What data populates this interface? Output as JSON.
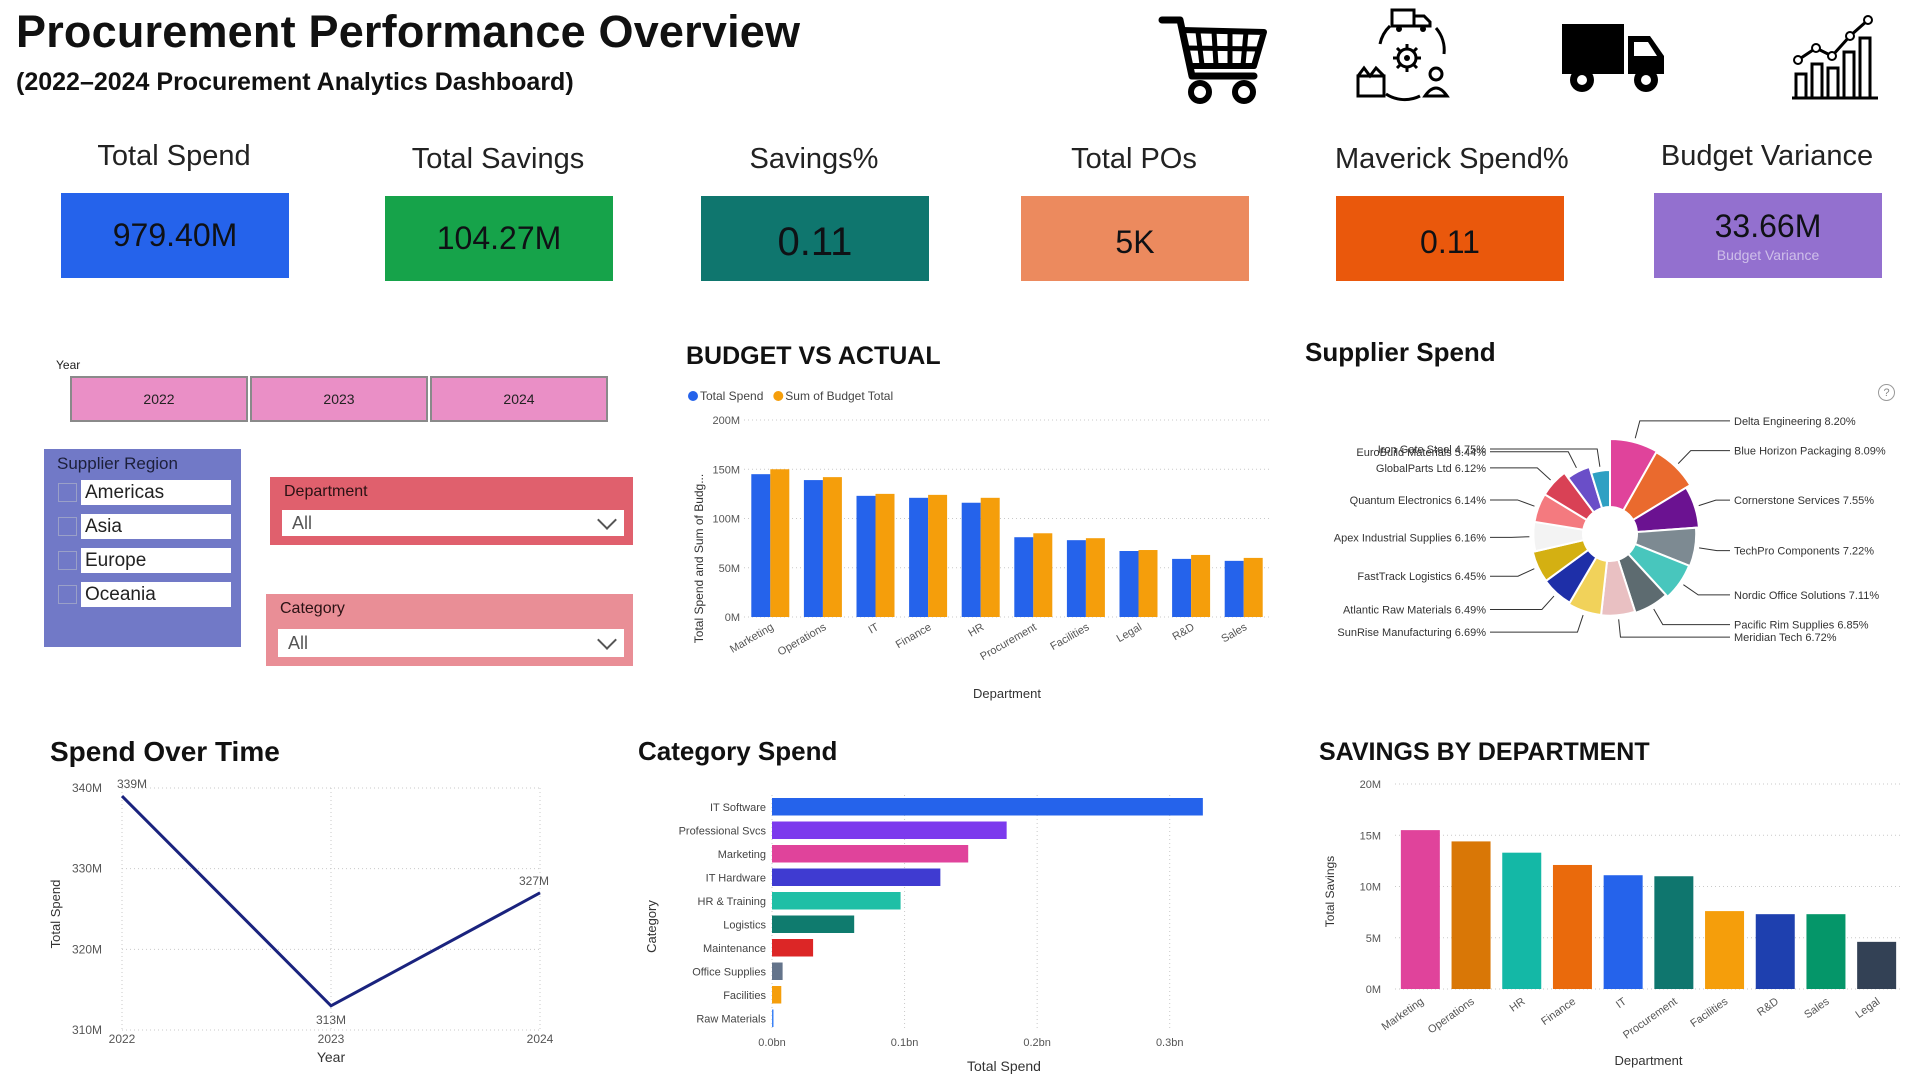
{
  "header": {
    "title": "Procurement Performance Overview",
    "subtitle": "(2022–2024 Procurement Analytics Dashboard)",
    "icons": [
      "shopping-cart-icon",
      "supply-chain-cycle-icon",
      "delivery-truck-icon",
      "growth-bar-chart-icon"
    ]
  },
  "kpis": [
    {
      "label": "Total Spend",
      "value": "979.40M",
      "sub": "",
      "color": "#2563eb"
    },
    {
      "label": "Total Savings",
      "value": "104.27M",
      "sub": "",
      "color": "#16a34a"
    },
    {
      "label": "Savings%",
      "value": "0.11",
      "sub": "",
      "color": "#0f766e"
    },
    {
      "label": "Total POs",
      "value": "5K",
      "sub": "",
      "color": "#ec8a5e"
    },
    {
      "label": "Maverick Spend%",
      "value": "0.11",
      "sub": "",
      "color": "#ea580c"
    },
    {
      "label": "Budget Variance",
      "value": "33.66M",
      "sub": "Budget Variance",
      "color": "#9370cf"
    }
  ],
  "filters": {
    "year": {
      "caption": "Year",
      "options": [
        "2022",
        "2023",
        "2024"
      ]
    },
    "region": {
      "caption": "Supplier Region",
      "options": [
        "Americas",
        "Asia",
        "Europe",
        "Oceania"
      ]
    },
    "department": {
      "caption": "Department",
      "value": "All"
    },
    "category": {
      "caption": "Category",
      "value": "All"
    }
  },
  "chart_data": [
    {
      "id": "budget-vs-actual",
      "type": "bar",
      "title": "BUDGET VS ACTUAL",
      "xlabel": "Department",
      "ylabel": "Total Spend and Sum of Budg...",
      "categories": [
        "Marketing",
        "Operations",
        "IT",
        "Finance",
        "HR",
        "Procurement",
        "Facilities",
        "Legal",
        "R&D",
        "Sales"
      ],
      "series": [
        {
          "name": "Total Spend",
          "color": "#2563eb",
          "values": [
            145,
            139,
            123,
            121,
            116,
            81,
            78,
            67,
            59,
            57
          ]
        },
        {
          "name": "Sum of Budget Total",
          "color": "#f59e0b",
          "values": [
            150,
            142,
            125,
            124,
            121,
            85,
            80,
            68,
            63,
            60
          ]
        }
      ],
      "yticks": [
        "0M",
        "50M",
        "100M",
        "150M",
        "200M"
      ],
      "ylim": [
        0,
        200
      ],
      "legend": "top-left",
      "grid": true
    },
    {
      "id": "supplier-spend",
      "type": "pie",
      "title": "Supplier Spend",
      "slices": [
        {
          "label": "Delta Engineering 8.20%",
          "value": 8.2,
          "color": "#e0439b"
        },
        {
          "label": "Blue Horizon Packaging 8.09%",
          "value": 8.09,
          "color": "#ea6a2e"
        },
        {
          "label": "Cornerstone Services 7.55%",
          "value": 7.55,
          "color": "#6b1291"
        },
        {
          "label": "TechPro Components 7.22%",
          "value": 7.22,
          "color": "#7d8a92"
        },
        {
          "label": "Nordic Office Solutions 7.11%",
          "value": 7.11,
          "color": "#48c6bd"
        },
        {
          "label": "Pacific Rim Supplies 6.85%",
          "value": 6.85,
          "color": "#5d6b70"
        },
        {
          "label": "Meridian Tech 6.72%",
          "value": 6.72,
          "color": "#e9c0c2"
        },
        {
          "label": "SunRise Manufacturing 6.69%",
          "value": 6.69,
          "color": "#f1d25a"
        },
        {
          "label": "Atlantic Raw Materials 6.49%",
          "value": 6.49,
          "color": "#1e2fa8"
        },
        {
          "label": "FastTrack Logistics 6.45%",
          "value": 6.45,
          "color": "#d4b012"
        },
        {
          "label": "Apex Industrial Supplies 6.16%",
          "value": 6.16,
          "color": "#ffffff"
        },
        {
          "label": "Quantum Electronics 6.14%",
          "value": 6.14,
          "color": "#f47a7f"
        },
        {
          "label": "GlobalParts Ltd 6.12%",
          "value": 6.12,
          "color": "#d94155"
        },
        {
          "label": "EuroBuild Materials 5.44%",
          "value": 5.44,
          "color": "#6a4ec8"
        },
        {
          "label": "Iron Gate Steel 4.75%",
          "value": 4.75,
          "color": "#2fa0c3"
        }
      ],
      "legend": "outside labels"
    },
    {
      "id": "spend-over-time",
      "type": "line",
      "title": "Spend Over Time",
      "xlabel": "Year",
      "ylabel": "Total Spend",
      "x": [
        "2022",
        "2023",
        "2024"
      ],
      "series": [
        {
          "color": "#1a237e",
          "values": [
            339,
            313,
            327
          ]
        }
      ],
      "data_labels": [
        "339M",
        "313M",
        "327M"
      ],
      "yticks": [
        "310M",
        "320M",
        "330M",
        "340M"
      ],
      "ylim": [
        310,
        340
      ],
      "grid": true
    },
    {
      "id": "category-spend",
      "type": "bar",
      "orientation": "horizontal",
      "title": "Category Spend",
      "xlabel": "Total Spend",
      "ylabel": "Category",
      "categories": [
        "IT Software",
        "Professional Svcs",
        "Marketing",
        "IT Hardware",
        "HR & Training",
        "Logistics",
        "Maintenance",
        "Office Supplies",
        "Facilities",
        "Raw Materials"
      ],
      "values": [
        0.325,
        0.177,
        0.148,
        0.127,
        0.097,
        0.062,
        0.031,
        0.008,
        0.007,
        0.001
      ],
      "colors": [
        "#2563eb",
        "#7c3aed",
        "#e0439b",
        "#3f3bd1",
        "#1fbfa6",
        "#0f7b6e",
        "#dc2626",
        "#64748b",
        "#f59e0b",
        "#3b82f6"
      ],
      "xticks": [
        "0.0bn",
        "0.1bn",
        "0.2bn",
        "0.3bn"
      ],
      "xlim": [
        0,
        0.35
      ],
      "grid": true
    },
    {
      "id": "savings-by-department",
      "type": "bar",
      "title": "SAVINGS BY DEPARTMENT",
      "xlabel": "Department",
      "ylabel": "Total Savings",
      "categories": [
        "Marketing",
        "Operations",
        "HR",
        "Finance",
        "IT",
        "Procurement",
        "Facilities",
        "R&D",
        "Sales",
        "Legal"
      ],
      "values": [
        15.5,
        14.4,
        13.3,
        12.1,
        11.1,
        11.0,
        7.6,
        7.3,
        7.3,
        4.6
      ],
      "colors": [
        "#e0439b",
        "#d97706",
        "#14b8a6",
        "#ea6a0c",
        "#2563eb",
        "#0f766e",
        "#f59e0b",
        "#1e40af",
        "#059669",
        "#334155"
      ],
      "yticks": [
        "0M",
        "5M",
        "10M",
        "15M",
        "20M"
      ],
      "ylim": [
        0,
        20
      ],
      "grid": true
    }
  ]
}
